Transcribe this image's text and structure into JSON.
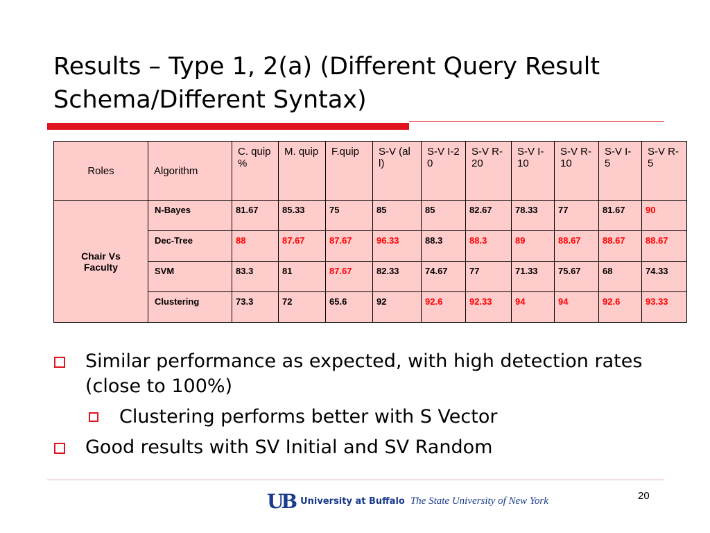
{
  "title": "Results – Type 1, 2(a) (Different Query Result Schema/Different Syntax)",
  "table": {
    "header": [
      "Roles",
      "Algorithm",
      "C. quip %",
      "M. quip",
      "F.quip",
      "S-V (all)",
      "S-V I-20",
      "S-V R-20",
      "S-V I-10",
      "S-V R-10",
      "S-V I-5",
      "S-V R-5"
    ],
    "role": "Chair Vs Faculty",
    "emphasis_color": "#ff0000",
    "rows": [
      {
        "algorithm": "N-Bayes",
        "values": [
          "81.67",
          "85.33",
          "75",
          "85",
          "85",
          "82.67",
          "78.33",
          "77",
          "81.67",
          "90"
        ],
        "emphasis": [
          false,
          false,
          false,
          false,
          false,
          false,
          false,
          false,
          false,
          true
        ]
      },
      {
        "algorithm": "Dec-Tree",
        "values": [
          "88",
          "87.67",
          "87.67",
          "96.33",
          "88.3",
          "88.3",
          "89",
          "88.67",
          "88.67",
          "88.67"
        ],
        "emphasis": [
          true,
          true,
          true,
          true,
          false,
          true,
          true,
          true,
          true,
          true
        ]
      },
      {
        "algorithm": "SVM",
        "values": [
          "83.3",
          "81",
          "87.67",
          "82.33",
          "74.67",
          "77",
          "71.33",
          "75.67",
          "68",
          "74.33"
        ],
        "emphasis": [
          false,
          false,
          true,
          false,
          false,
          false,
          false,
          false,
          false,
          false
        ]
      },
      {
        "algorithm": "Clustering",
        "values": [
          "73.3",
          "72",
          "65.6",
          "92",
          "92.6",
          "92.33",
          "94",
          "94",
          "92.6",
          "93.33"
        ],
        "emphasis": [
          false,
          false,
          false,
          false,
          true,
          true,
          true,
          true,
          true,
          true
        ]
      }
    ]
  },
  "bullets": [
    {
      "text": "Similar performance as expected, with high detection rates (close to 100%)",
      "level": 1
    },
    {
      "text": "Clustering performs better with S Vector",
      "level": 2
    },
    {
      "text": "Good results with SV Initial and SV Random",
      "level": 1
    }
  ],
  "footer": {
    "logo": "UB",
    "university": "University at Buffalo",
    "state": "The State University of New York",
    "page": "20"
  }
}
